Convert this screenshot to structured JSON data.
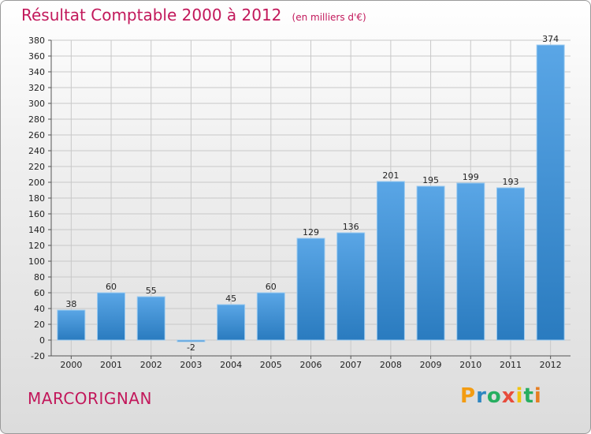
{
  "title": "Résultat Comptable 2000 à 2012",
  "subtitle": "(en milliers d'€)",
  "commune": "MARCORIGNAN",
  "logo": {
    "letters": [
      "P",
      "r",
      "o",
      "x",
      "i",
      "t",
      "i"
    ],
    "colors": [
      "#f39c12",
      "#2e86c1",
      "#27ae60",
      "#e74c3c",
      "#f1c40f",
      "#27ae60",
      "#e67e22"
    ]
  },
  "colors": {
    "bar_top": "#5aa6e6",
    "bar_bottom": "#2a7bbf",
    "title": "#c2185b"
  },
  "chart_data": {
    "type": "bar",
    "title": "Résultat Comptable 2000 à 2012",
    "subtitle": "(en milliers d'€)",
    "xlabel": "",
    "ylabel": "",
    "categories": [
      "2000",
      "2001",
      "2002",
      "2003",
      "2004",
      "2005",
      "2006",
      "2007",
      "2008",
      "2009",
      "2010",
      "2011",
      "2012"
    ],
    "values": [
      38,
      60,
      55,
      -2,
      45,
      60,
      129,
      136,
      201,
      195,
      199,
      193,
      374
    ],
    "ylim": [
      -20,
      380
    ],
    "yticks": [
      -20,
      0,
      20,
      40,
      60,
      80,
      100,
      120,
      140,
      160,
      180,
      200,
      220,
      240,
      260,
      280,
      300,
      320,
      340,
      360,
      380
    ],
    "grid": true,
    "legend": "none"
  }
}
